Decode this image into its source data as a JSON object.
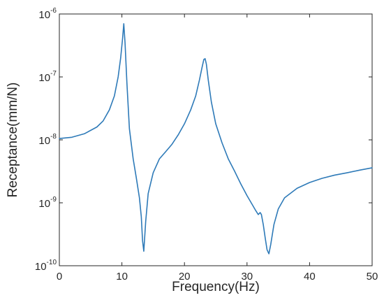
{
  "chart_data": {
    "type": "line",
    "title": "",
    "xlabel": "Frequency(Hz)",
    "ylabel": "Receptance(mm/N)",
    "xlim": [
      0,
      50
    ],
    "ylim": [
      1e-10,
      1e-06
    ],
    "y_scale": "log",
    "grid": false,
    "legend": "none",
    "x_ticks": [
      "0",
      "10",
      "20",
      "30",
      "40",
      "50"
    ],
    "y_ticks": [
      {
        "base": "10",
        "exp": "-10",
        "value": 1e-10
      },
      {
        "base": "10",
        "exp": "-9",
        "value": 1e-09
      },
      {
        "base": "10",
        "exp": "-8",
        "value": 1e-08
      },
      {
        "base": "10",
        "exp": "-7",
        "value": 1e-07
      },
      {
        "base": "10",
        "exp": "-6",
        "value": 1e-06
      }
    ],
    "line_color": "#2e7ab8",
    "series": [
      {
        "name": "",
        "x": [
          0,
          2,
          4,
          6,
          7,
          8,
          8.8,
          9.4,
          9.8,
          10.1,
          10.3,
          10.5,
          10.8,
          11.2,
          11.8,
          12.3,
          12.8,
          13.1,
          13.3,
          13.5,
          13.8,
          14.2,
          15,
          16,
          17,
          18,
          19,
          20,
          21,
          21.8,
          22.4,
          22.8,
          23.1,
          23.3,
          23.5,
          23.8,
          24.3,
          25,
          26,
          27,
          28,
          29,
          30,
          30.8,
          31.4,
          31.8,
          32.1,
          32.3,
          32.6,
          32.9,
          33.2,
          33.5,
          33.8,
          34.3,
          35,
          36,
          38,
          40,
          42,
          44,
          46,
          48,
          50
        ],
        "y": [
          1.05e-08,
          1.1e-08,
          1.25e-08,
          1.6e-08,
          2e-08,
          3e-08,
          5e-08,
          1e-07,
          2e-07,
          4e-07,
          7e-07,
          3.5e-07,
          8e-08,
          1.5e-08,
          5e-09,
          2.5e-09,
          1.2e-09,
          6e-10,
          2.5e-10,
          1.7e-10,
          5e-10,
          1.4e-09,
          3e-09,
          5e-09,
          6.5e-09,
          8.5e-09,
          1.2e-08,
          1.8e-08,
          3e-08,
          5e-08,
          9e-08,
          1.4e-07,
          1.9e-07,
          1.95e-07,
          1.6e-07,
          9e-08,
          4e-08,
          1.8e-08,
          9e-09,
          5e-09,
          3.2e-09,
          2e-09,
          1.3e-09,
          9.5e-10,
          7.5e-10,
          6.5e-10,
          7e-10,
          6.5e-10,
          4.5e-10,
          2.8e-10,
          1.8e-10,
          1.55e-10,
          2.2e-10,
          4.5e-10,
          8e-10,
          1.2e-09,
          1.7e-09,
          2.1e-09,
          2.45e-09,
          2.75e-09,
          3e-09,
          3.3e-09,
          3.6e-09
        ]
      }
    ]
  }
}
